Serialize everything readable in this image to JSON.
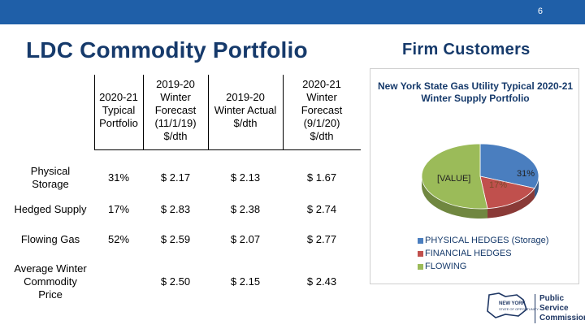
{
  "header": {
    "page_number": "6",
    "title": "LDC Commodity Portfolio",
    "subtitle": "Firm Customers"
  },
  "table": {
    "columns": [
      {
        "lines": [
          "2020-21",
          "Typical",
          "Portfolio"
        ]
      },
      {
        "lines": [
          "2019-20",
          "Winter",
          "Forecast",
          "(11/1/19)",
          "$/dth"
        ]
      },
      {
        "lines": [
          "2019-20",
          "Winter Actual",
          "$/dth"
        ]
      },
      {
        "lines": [
          "2020-21",
          "Winter",
          "Forecast",
          "(9/1/20)",
          "$/dth"
        ]
      }
    ],
    "rows": [
      {
        "label": [
          "Physical",
          "Storage"
        ],
        "cells": [
          "31%",
          "$ 2.17",
          "$ 2.13",
          "$ 1.67"
        ]
      },
      {
        "label": [
          "Hedged Supply"
        ],
        "cells": [
          "17%",
          "$ 2.83",
          "$ 2.38",
          "$ 2.74"
        ]
      },
      {
        "label": [
          "Flowing Gas"
        ],
        "cells": [
          "52%",
          "$ 2.59",
          "$ 2.07",
          "$ 2.77"
        ]
      },
      {
        "label": [
          "Average Winter",
          "Commodity",
          "Price"
        ],
        "cells": [
          "",
          "$ 2.50",
          "$ 2.15",
          "$ 2.43"
        ]
      }
    ]
  },
  "chart_data": {
    "type": "pie",
    "title": "New York State Gas Utility Typical 2020-21 Winter Supply Portfolio",
    "categories": [
      "PHYSICAL HEDGES (Storage)",
      "FINANCIAL HEDGES",
      "FLOWING"
    ],
    "values": [
      31,
      17,
      52
    ],
    "data_labels": [
      "31%",
      "17%",
      "[VALUE]"
    ],
    "colors": [
      "#4a7ebf",
      "#c0504d",
      "#9bbb59"
    ],
    "legend_position": "bottom"
  },
  "footer": {
    "logo_line1": "Public Service",
    "logo_line2": "Commission"
  }
}
